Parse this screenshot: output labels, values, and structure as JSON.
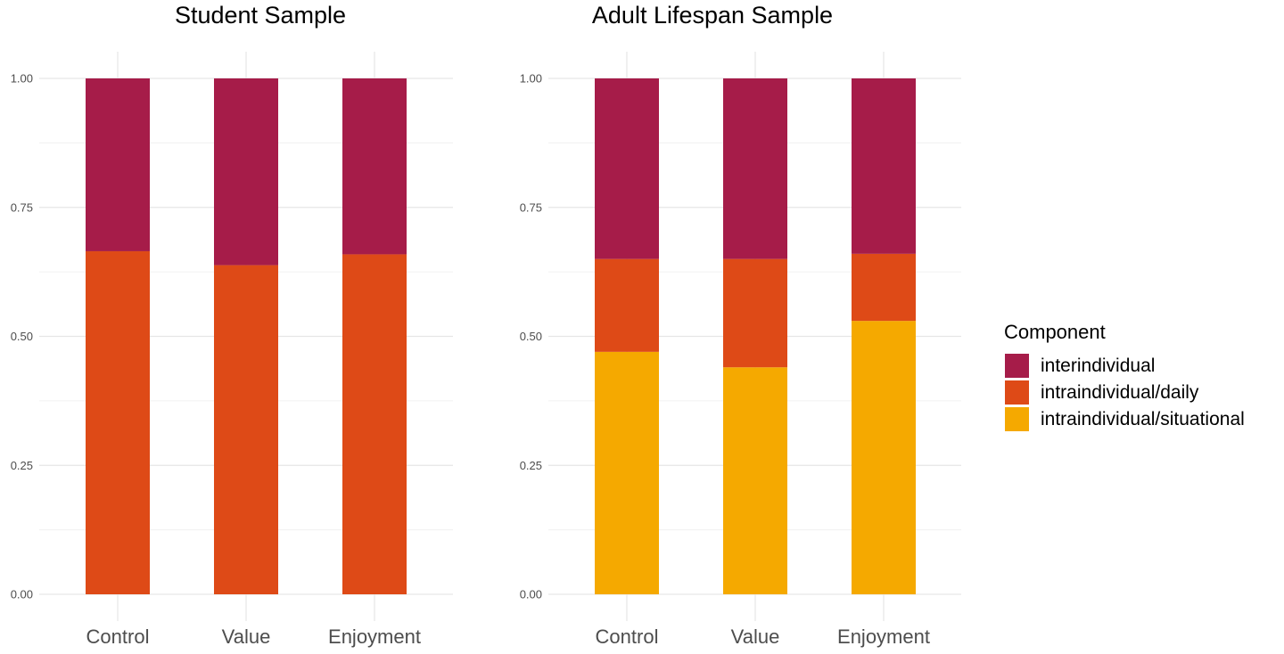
{
  "chart_data": [
    {
      "type": "bar",
      "stacked": true,
      "title": "Student Sample",
      "categories": [
        "Control",
        "Value",
        "Enjoyment"
      ],
      "series": [
        {
          "name": "intraindividual/situational",
          "values": [
            0.0,
            0.0,
            0.0
          ]
        },
        {
          "name": "intraindividual/daily",
          "values": [
            0.665,
            0.638,
            0.659
          ]
        },
        {
          "name": "interindividual",
          "values": [
            0.335,
            0.362,
            0.341
          ]
        }
      ],
      "ylim": [
        0,
        1
      ],
      "yticks": [
        "0.00",
        "0.25",
        "0.50",
        "0.75",
        "1.00"
      ],
      "xlabel": "",
      "ylabel": ""
    },
    {
      "type": "bar",
      "stacked": true,
      "title": "Adult Lifespan Sample",
      "categories": [
        "Control",
        "Value",
        "Enjoyment"
      ],
      "series": [
        {
          "name": "intraindividual/situational",
          "values": [
            0.47,
            0.44,
            0.53
          ]
        },
        {
          "name": "intraindividual/daily",
          "values": [
            0.18,
            0.21,
            0.13
          ]
        },
        {
          "name": "interindividual",
          "values": [
            0.35,
            0.35,
            0.34
          ]
        }
      ],
      "ylim": [
        0,
        1
      ],
      "yticks": [
        "0.00",
        "0.25",
        "0.50",
        "0.75",
        "1.00"
      ],
      "xlabel": "",
      "ylabel": ""
    }
  ],
  "legend": {
    "title": "Component",
    "entries": [
      {
        "label": "interindividual",
        "color": "#A61C49"
      },
      {
        "label": "intraindividual/daily",
        "color": "#DE4A17"
      },
      {
        "label": "intraindividual/situational",
        "color": "#F5A900"
      }
    ]
  }
}
